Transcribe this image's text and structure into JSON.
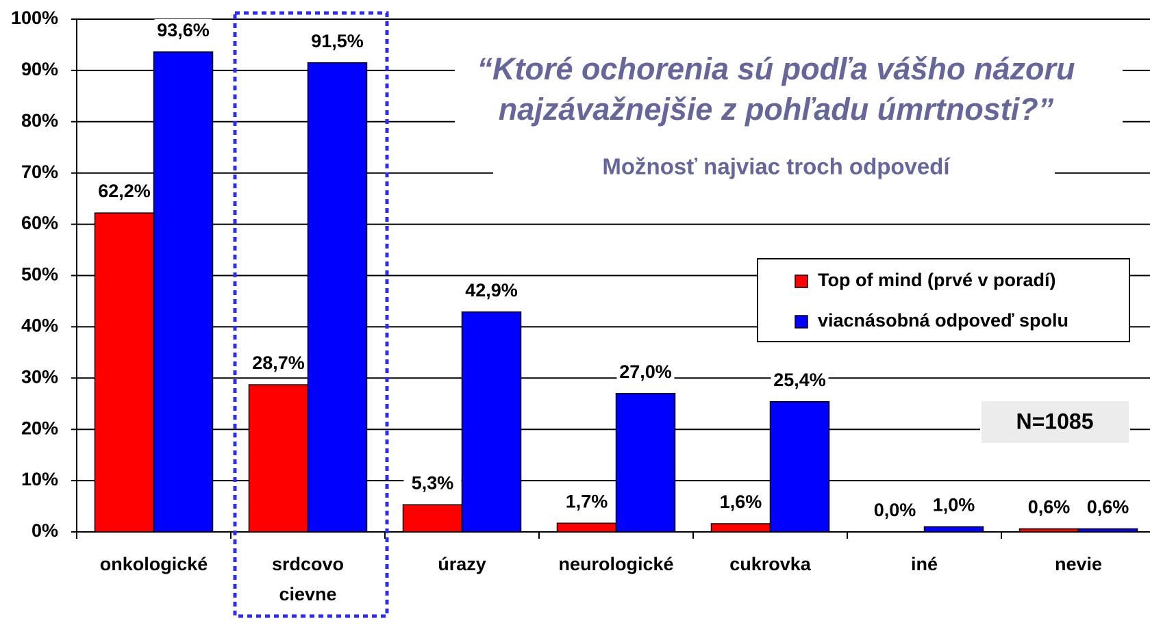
{
  "chart_data": {
    "type": "bar",
    "title": [
      "“Ktoré ochorenia sú podľa vášho názoru",
      "najzávažnejšie z pohľadu úmrtnosti?”"
    ],
    "subtitle": "Možnosť najviac troch odpovedí",
    "annotation": "N=1085",
    "categories": [
      "onkologické",
      [
        "srdcovo",
        "cievne"
      ],
      "úrazy",
      "neurologické",
      "cukrovka",
      "iné",
      "nevie"
    ],
    "series": [
      {
        "name": "Top of mind (prvé v poradí)",
        "color": "#ff0000",
        "values": [
          62.2,
          28.7,
          5.3,
          1.7,
          1.6,
          0.0,
          0.6
        ],
        "value_labels": [
          "62,2%",
          "28,7%",
          "5,3%",
          "1,7%",
          "1,6%",
          "0,0%",
          "0,6%"
        ]
      },
      {
        "name": "viacnásobná odpoveď spolu",
        "color": "#0000ff",
        "values": [
          93.6,
          91.5,
          42.9,
          27.0,
          25.4,
          1.0,
          0.6
        ],
        "value_labels": [
          "93,6%",
          "91,5%",
          "42,9%",
          "27,0%",
          "25,4%",
          "1,0%",
          "0,6%"
        ]
      }
    ],
    "ylim": [
      0,
      100
    ],
    "yticks": [
      {
        "value": 0,
        "label": "0%"
      },
      {
        "value": 10,
        "label": "10%"
      },
      {
        "value": 20,
        "label": "20%"
      },
      {
        "value": 30,
        "label": "30%"
      },
      {
        "value": 40,
        "label": "40%"
      },
      {
        "value": 50,
        "label": "50%"
      },
      {
        "value": 60,
        "label": "60%"
      },
      {
        "value": 70,
        "label": "70%"
      },
      {
        "value": 80,
        "label": "80%"
      },
      {
        "value": 90,
        "label": "90%"
      },
      {
        "value": 100,
        "label": "100%"
      }
    ],
    "grid": true
  }
}
